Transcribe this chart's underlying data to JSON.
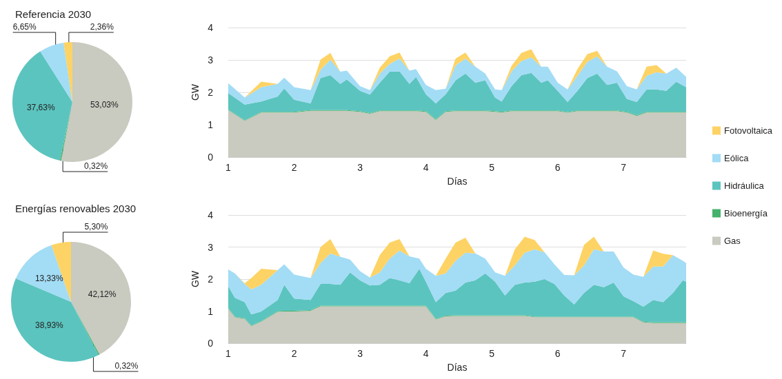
{
  "chart_data": [
    {
      "type": "pie",
      "title": "Referencia 2030",
      "categories": [
        null,
        null,
        null,
        null,
        null
      ],
      "values": [
        53.03,
        0.32,
        37.63,
        6.65,
        2.36
      ],
      "colors": [
        "#c9cac0",
        "#45b26b",
        "#5cc4bf",
        "#a3dcf5",
        "#fdd365"
      ],
      "value_labels": [
        "53,03%",
        "0,32%",
        "37,63%",
        "6,65%",
        "2,36%"
      ]
    },
    {
      "type": "area",
      "stacked": true,
      "xlabel": "Días",
      "ylabel": "GW",
      "xlim": [
        1,
        7.95
      ],
      "xticks": [
        1,
        2,
        3,
        4,
        5,
        6,
        7
      ],
      "ylim": [
        0,
        4
      ],
      "yticks": [
        0,
        1,
        2,
        3,
        4
      ],
      "grid": "y",
      "legend": "right",
      "x": [
        1.0,
        1.25,
        1.5,
        1.75,
        1.85,
        2.0,
        2.25,
        2.4,
        2.55,
        2.7,
        2.8,
        3.0,
        3.15,
        3.3,
        3.45,
        3.6,
        3.75,
        3.85,
        4.0,
        4.15,
        4.3,
        4.45,
        4.6,
        4.75,
        4.9,
        5.05,
        5.15,
        5.3,
        5.45,
        5.6,
        5.75,
        5.85,
        6.0,
        6.15,
        6.3,
        6.45,
        6.6,
        6.75,
        6.9,
        7.05,
        7.2,
        7.35,
        7.5,
        7.65,
        7.8,
        7.95
      ],
      "series": [
        {
          "name": "Gas",
          "color": "#c9cac0",
          "values": [
            1.45,
            1.12,
            1.38,
            1.38,
            1.38,
            1.38,
            1.43,
            1.43,
            1.43,
            1.43,
            1.43,
            1.4,
            1.34,
            1.42,
            1.42,
            1.42,
            1.42,
            1.42,
            1.4,
            1.15,
            1.4,
            1.42,
            1.42,
            1.42,
            1.42,
            1.4,
            1.38,
            1.42,
            1.42,
            1.42,
            1.42,
            1.42,
            1.42,
            1.37,
            1.42,
            1.42,
            1.42,
            1.42,
            1.42,
            1.38,
            1.27,
            1.38,
            1.38,
            1.38,
            1.38,
            1.38
          ]
        },
        {
          "name": "Bioenergía",
          "color": "#45b26b",
          "values": [
            0.02,
            0.02,
            0.02,
            0.02,
            0.02,
            0.02,
            0.02,
            0.02,
            0.02,
            0.02,
            0.02,
            0.02,
            0.02,
            0.02,
            0.02,
            0.02,
            0.02,
            0.02,
            0.02,
            0.02,
            0.02,
            0.02,
            0.02,
            0.02,
            0.02,
            0.02,
            0.02,
            0.02,
            0.02,
            0.02,
            0.02,
            0.02,
            0.02,
            0.02,
            0.02,
            0.02,
            0.02,
            0.02,
            0.02,
            0.02,
            0.02,
            0.02,
            0.02,
            0.02,
            0.02,
            0.02
          ]
        },
        {
          "name": "Hidráulica",
          "color": "#5cc4bf",
          "values": [
            0.51,
            0.48,
            0.32,
            0.47,
            0.72,
            0.37,
            0.21,
            0.99,
            1.08,
            0.81,
            0.95,
            0.63,
            0.57,
            0.86,
            1.2,
            1.21,
            0.82,
            1.04,
            0.52,
            0.49,
            0.52,
            0.93,
            1.14,
            0.86,
            0.93,
            0.42,
            0.32,
            0.75,
            1.09,
            1.16,
            0.86,
            0.93,
            0.61,
            0.31,
            0.61,
            1.0,
            1.14,
            0.79,
            0.86,
            0.4,
            0.41,
            0.69,
            0.69,
            0.65,
            0.93,
            0.76
          ]
        },
        {
          "name": "Eólica",
          "color": "#a3dcf5",
          "values": [
            0.3,
            0.22,
            0.44,
            0.39,
            0.33,
            0.39,
            0.41,
            0.25,
            0.48,
            0.38,
            0.27,
            0.14,
            0.14,
            0.28,
            0.24,
            0.39,
            0.41,
            0.24,
            0.29,
            0.41,
            0.17,
            0.46,
            0.46,
            0.49,
            0.21,
            0.25,
            0.35,
            0.46,
            0.44,
            0.48,
            0.49,
            0.42,
            0.25,
            0.39,
            0.46,
            0.5,
            0.53,
            0.56,
            0.35,
            0.39,
            0.39,
            0.42,
            0.53,
            0.53,
            0.43,
            0.32
          ]
        },
        {
          "name": "Fotovoltaica",
          "color": "#fdd365",
          "values": [
            0,
            0,
            0.17,
            0,
            0,
            0,
            0,
            0.32,
            0.21,
            0,
            0,
            0,
            0,
            0.18,
            0.23,
            0.19,
            0,
            0,
            0,
            0,
            0,
            0.21,
            0.19,
            0,
            0,
            0,
            0,
            0.17,
            0.25,
            0.25,
            0,
            0,
            0,
            0,
            0.21,
            0.24,
            0.17,
            0,
            0,
            0,
            0,
            0.28,
            0.22,
            0,
            0,
            0
          ]
        }
      ]
    },
    {
      "type": "pie",
      "title": "Energías renovables 2030",
      "categories": [
        null,
        null,
        null,
        null,
        null
      ],
      "values": [
        42.12,
        0.32,
        38.93,
        13.33,
        5.3
      ],
      "colors": [
        "#c9cac0",
        "#45b26b",
        "#5cc4bf",
        "#a3dcf5",
        "#fdd365"
      ],
      "value_labels": [
        "42,12%",
        "0,32%",
        "38,93%",
        "13,33%",
        "5,30%"
      ]
    },
    {
      "type": "area",
      "stacked": true,
      "xlabel": "Días",
      "ylabel": "GW",
      "xlim": [
        1,
        7.95
      ],
      "xticks": [
        1,
        2,
        3,
        4,
        5,
        6,
        7
      ],
      "ylim": [
        0,
        4
      ],
      "yticks": [
        0,
        1,
        2,
        3,
        4
      ],
      "grid": "y",
      "x": [
        1.0,
        1.1,
        1.25,
        1.35,
        1.5,
        1.75,
        1.85,
        2.0,
        2.25,
        2.4,
        2.55,
        2.7,
        2.85,
        3.0,
        3.15,
        3.3,
        3.45,
        3.6,
        3.75,
        3.9,
        4.0,
        4.15,
        4.3,
        4.45,
        4.6,
        4.75,
        4.9,
        5.05,
        5.2,
        5.35,
        5.5,
        5.65,
        5.8,
        5.95,
        6.1,
        6.25,
        6.4,
        6.55,
        6.7,
        6.85,
        7.0,
        7.15,
        7.3,
        7.45,
        7.6,
        7.75,
        7.9,
        7.95
      ],
      "series": [
        {
          "color": "#c9cac0",
          "values": [
            1.08,
            0.81,
            0.76,
            0.53,
            0.67,
            0.98,
            0.99,
            0.99,
            1.01,
            1.15,
            1.15,
            1.15,
            1.15,
            1.15,
            1.15,
            1.15,
            1.15,
            1.15,
            1.15,
            1.15,
            1.15,
            0.74,
            0.84,
            0.85,
            0.85,
            0.85,
            0.85,
            0.85,
            0.85,
            0.85,
            0.85,
            0.81,
            0.81,
            0.81,
            0.81,
            0.81,
            0.81,
            0.81,
            0.81,
            0.81,
            0.81,
            0.81,
            0.65,
            0.63,
            0.63,
            0.63,
            0.63,
            0.63
          ]
        },
        {
          "color": "#45b26b",
          "values": [
            0.02,
            0.02,
            0.02,
            0.02,
            0.02,
            0.02,
            0.02,
            0.02,
            0.02,
            0.02,
            0.02,
            0.02,
            0.02,
            0.02,
            0.02,
            0.02,
            0.02,
            0.02,
            0.02,
            0.02,
            0.02,
            0.02,
            0.02,
            0.02,
            0.02,
            0.02,
            0.02,
            0.02,
            0.02,
            0.02,
            0.02,
            0.02,
            0.02,
            0.02,
            0.02,
            0.02,
            0.02,
            0.02,
            0.02,
            0.02,
            0.02,
            0.02,
            0.02,
            0.02,
            0.02,
            0.02,
            0.02,
            0.02
          ]
        },
        {
          "color": "#5cc4bf",
          "values": [
            0.68,
            0.59,
            0.5,
            0.35,
            0.3,
            0.35,
            0.81,
            0.38,
            0.32,
            0.68,
            0.68,
            0.65,
            1.04,
            0.79,
            0.63,
            0.65,
            0.86,
            0.79,
            0.7,
            1.15,
            0.75,
            0.52,
            0.71,
            0.77,
            1.02,
            1.09,
            1.31,
            1.05,
            0.62,
            0.95,
            1.02,
            1.09,
            1.17,
            1.02,
            0.66,
            0.38,
            0.74,
            0.99,
            0.92,
            1.06,
            0.63,
            0.48,
            0.47,
            0.7,
            0.63,
            0.92,
            1.31,
            1.27
          ]
        },
        {
          "color": "#a3dcf5",
          "values": [
            0.52,
            0.76,
            0.57,
            0.78,
            0.83,
            0.93,
            0.64,
            0.75,
            0.68,
            0.65,
            0.95,
            0.88,
            0.4,
            0.29,
            0.25,
            0.39,
            0.61,
            0.93,
            0.84,
            0.32,
            0.4,
            0.82,
            0.61,
            0.93,
            0.93,
            0.84,
            0.46,
            0.29,
            0.61,
            0.61,
            0.93,
            1.01,
            0.84,
            0.61,
            0.64,
            0.91,
            0.86,
            1.11,
            1.11,
            0.97,
            0.9,
            0.83,
            0.93,
            1.04,
            1.11,
            1.18,
            0.61,
            0.58
          ]
        },
        {
          "color": "#fdd365",
          "values": [
            0,
            0,
            0.02,
            0.35,
            0.5,
            0,
            0,
            0,
            0,
            0.5,
            0.45,
            0,
            0,
            0,
            0,
            0.54,
            0.5,
            0.36,
            0,
            0,
            0,
            0,
            0.46,
            0.57,
            0.47,
            0,
            0,
            0,
            0,
            0.5,
            0.5,
            0.29,
            0,
            0,
            0,
            0,
            0.64,
            0.39,
            0,
            0,
            0,
            0,
            0,
            0.5,
            0.4,
            0,
            0,
            0
          ]
        }
      ]
    }
  ]
}
